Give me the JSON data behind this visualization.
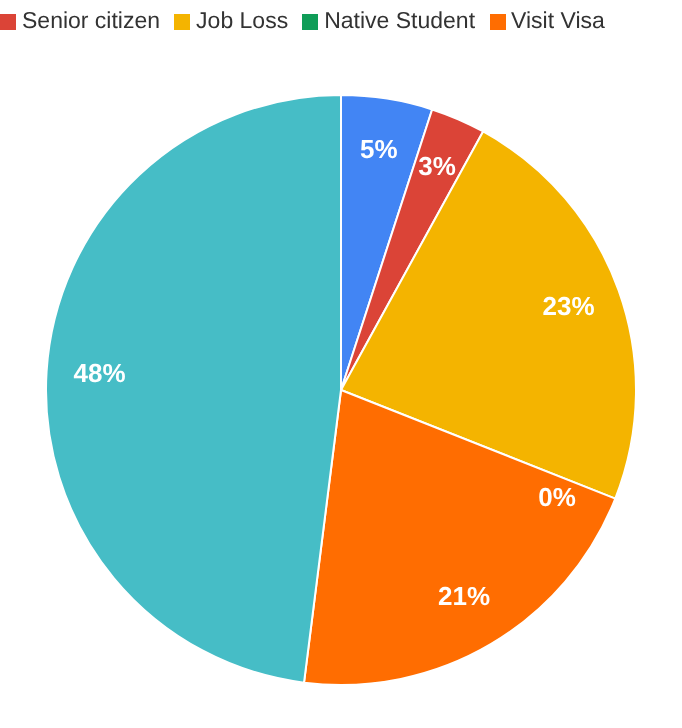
{
  "chart_data": {
    "type": "pie",
    "categories": [
      null,
      "Senior citizen",
      "Job Loss",
      "Native Student",
      "Visit Visa",
      null
    ],
    "values": [
      5,
      3,
      23,
      0,
      21,
      48
    ],
    "colors": [
      "#4285f4",
      "#db4437",
      "#f4b400",
      "#0f9d58",
      "#ff6d01",
      "#46bdc6"
    ],
    "value_labels": [
      "5%",
      "3%",
      "23%",
      "0%",
      "21%",
      "48%"
    ],
    "legend": "top"
  }
}
